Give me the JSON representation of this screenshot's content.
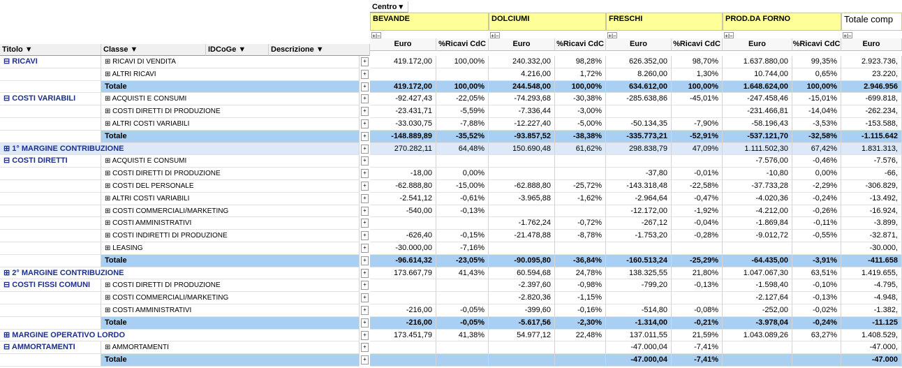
{
  "header": {
    "centro": "Centro",
    "groups": [
      "BEVANDE",
      "DOLCIUMI",
      "FRESCHI",
      "PROD.DA FORNO"
    ],
    "total": "Totale comp",
    "measures": [
      "Euro",
      "%Ricavi CdC"
    ],
    "total_measure": "Euro",
    "fields": [
      "Titolo",
      "Classe",
      "IDCoGe",
      "Descrizione"
    ]
  },
  "rows": [
    {
      "titolo": "RICAVI",
      "classe": "RICAVI DI VENDITA",
      "values": [
        "419.172,00",
        "100,00%",
        "240.332,00",
        "98,28%",
        "626.352,00",
        "98,70%",
        "1.637.880,00",
        "99,35%",
        "2.923.736,"
      ]
    },
    {
      "titolo": null,
      "classe": "ALTRI RICAVI",
      "values": [
        null,
        null,
        "4.216,00",
        "1,72%",
        "8.260,00",
        "1,30%",
        "10.744,00",
        "0,65%",
        "23.220,"
      ]
    },
    {
      "titolo": null,
      "classe": "Totale",
      "values": [
        "419.172,00",
        "100,00%",
        "244.548,00",
        "100,00%",
        "634.612,00",
        "100,00%",
        "1.648.624,00",
        "100,00%",
        "2.946.956"
      ]
    },
    {
      "titolo": "COSTI VARIABILI",
      "classe": "ACQUISTI E CONSUMI",
      "values": [
        "-92.427,43",
        "-22,05%",
        "-74.293,68",
        "-30,38%",
        "-285.638,86",
        "-45,01%",
        "-247.458,46",
        "-15,01%",
        "-699.818,"
      ]
    },
    {
      "titolo": null,
      "classe": "COSTI DIRETTI DI PRODUZIONE",
      "values": [
        "-23.431,71",
        "-5,59%",
        "-7.336,44",
        "-3,00%",
        null,
        null,
        "-231.466,81",
        "-14,04%",
        "-262.234,"
      ]
    },
    {
      "titolo": null,
      "classe": "ALTRI COSTI VARIABILI",
      "values": [
        "-33.030,75",
        "-7,88%",
        "-12.227,40",
        "-5,00%",
        "-50.134,35",
        "-7,90%",
        "-58.196,43",
        "-3,53%",
        "-153.588,"
      ]
    },
    {
      "titolo": null,
      "classe": "Totale",
      "values": [
        "-148.889,89",
        "-35,52%",
        "-93.857,52",
        "-38,38%",
        "-335.773,21",
        "-52,91%",
        "-537.121,70",
        "-32,58%",
        "-1.115.642"
      ]
    },
    {
      "titolo": "1° MARGINE CONTRIBUZIONE",
      "classe": null,
      "values": [
        "270.282,11",
        "64,48%",
        "150.690,48",
        "61,62%",
        "298.838,79",
        "47,09%",
        "1.111.502,30",
        "67,42%",
        "1.831.313,"
      ]
    },
    {
      "titolo": "COSTI DIRETTI",
      "classe": "ACQUISTI E CONSUMI",
      "values": [
        null,
        null,
        null,
        null,
        null,
        null,
        "-7.576,00",
        "-0,46%",
        "-7.576,"
      ]
    },
    {
      "titolo": null,
      "classe": "COSTI DIRETTI DI PRODUZIONE",
      "values": [
        "-18,00",
        "0,00%",
        null,
        null,
        "-37,80",
        "-0,01%",
        "-10,80",
        "0,00%",
        "-66,"
      ]
    },
    {
      "titolo": null,
      "classe": "COSTI DEL PERSONALE",
      "values": [
        "-62.888,80",
        "-15,00%",
        "-62.888,80",
        "-25,72%",
        "-143.318,48",
        "-22,58%",
        "-37.733,28",
        "-2,29%",
        "-306.829,"
      ]
    },
    {
      "titolo": null,
      "classe": "ALTRI COSTI VARIABILI",
      "values": [
        "-2.541,12",
        "-0,61%",
        "-3.965,88",
        "-1,62%",
        "-2.964,64",
        "-0,47%",
        "-4.020,36",
        "-0,24%",
        "-13.492,"
      ]
    },
    {
      "titolo": null,
      "classe": "COSTI COMMERCIALI/MARKETING",
      "values": [
        "-540,00",
        "-0,13%",
        null,
        null,
        "-12.172,00",
        "-1,92%",
        "-4.212,00",
        "-0,26%",
        "-16.924,"
      ]
    },
    {
      "titolo": null,
      "classe": "COSTI AMMINISTRATIVI",
      "values": [
        null,
        null,
        "-1.762,24",
        "-0,72%",
        "-267,12",
        "-0,04%",
        "-1.869,84",
        "-0,11%",
        "-3.899,"
      ]
    },
    {
      "titolo": null,
      "classe": "COSTI INDIRETTI DI PRODUZIONE",
      "values": [
        "-626,40",
        "-0,15%",
        "-21.478,88",
        "-8,78%",
        "-1.753,20",
        "-0,28%",
        "-9.012,72",
        "-0,55%",
        "-32.871,"
      ]
    },
    {
      "titolo": null,
      "classe": "LEASING",
      "values": [
        "-30.000,00",
        "-7,16%",
        null,
        null,
        null,
        null,
        null,
        null,
        "-30.000,"
      ]
    },
    {
      "titolo": null,
      "classe": "Totale",
      "values": [
        "-96.614,32",
        "-23,05%",
        "-90.095,80",
        "-36,84%",
        "-160.513,24",
        "-25,29%",
        "-64.435,00",
        "-3,91%",
        "-411.658"
      ]
    },
    {
      "titolo": "2° MARGINE CONTRIBUZIONE",
      "classe": null,
      "values": [
        "173.667,79",
        "41,43%",
        "60.594,68",
        "24,78%",
        "138.325,55",
        "21,80%",
        "1.047.067,30",
        "63,51%",
        "1.419.655,"
      ]
    },
    {
      "titolo": "COSTI FISSI COMUNI",
      "classe": "COSTI DIRETTI DI PRODUZIONE",
      "values": [
        null,
        null,
        "-2.397,60",
        "-0,98%",
        "-799,20",
        "-0,13%",
        "-1.598,40",
        "-0,10%",
        "-4.795,"
      ]
    },
    {
      "titolo": null,
      "classe": "COSTI COMMERCIALI/MARKETING",
      "values": [
        null,
        null,
        "-2.820,36",
        "-1,15%",
        null,
        null,
        "-2.127,64",
        "-0,13%",
        "-4.948,"
      ]
    },
    {
      "titolo": null,
      "classe": "COSTI AMMINISTRATIVI",
      "values": [
        "-216,00",
        "-0,05%",
        "-399,60",
        "-0,16%",
        "-514,80",
        "-0,08%",
        "-252,00",
        "-0,02%",
        "-1.382,"
      ]
    },
    {
      "titolo": null,
      "classe": "Totale",
      "values": [
        "-216,00",
        "-0,05%",
        "-5.617,56",
        "-2,30%",
        "-1.314,00",
        "-0,21%",
        "-3.978,04",
        "-0,24%",
        "-11.125"
      ]
    },
    {
      "titolo": "MARGINE OPERATIVO LORDO",
      "classe": null,
      "values": [
        "173.451,79",
        "41,38%",
        "54.977,12",
        "22,48%",
        "137.011,55",
        "21,59%",
        "1.043.089,26",
        "63,27%",
        "1.408.529,"
      ]
    },
    {
      "titolo": "AMMORTAMENTI",
      "classe": "AMMORTAMENTI",
      "values": [
        null,
        null,
        null,
        null,
        "-47.000,04",
        "-7,41%",
        null,
        null,
        "-47.000,"
      ]
    },
    {
      "titolo": null,
      "classe": "Totale",
      "values": [
        null,
        null,
        null,
        null,
        "-47.000,04",
        "-7,41%",
        null,
        null,
        "-47.000"
      ]
    }
  ]
}
